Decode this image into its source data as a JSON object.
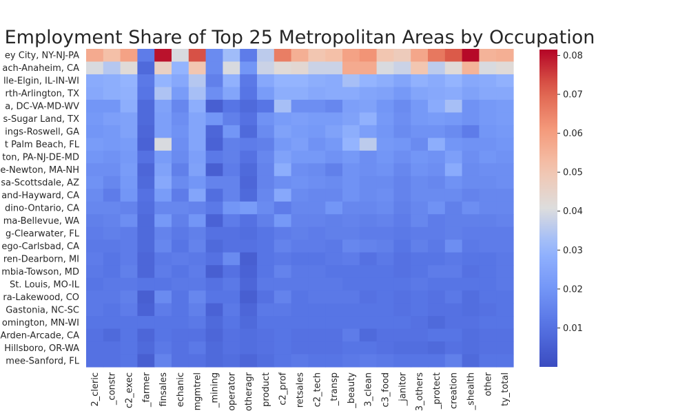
{
  "chart_data": {
    "type": "heatmap",
    "title": "Employment Share of Top 25 Metropolitan Areas by Occupation",
    "colormap": "coolwarm",
    "vmin": 0.0,
    "vmax": 0.0815,
    "colorbar_ticks": [
      0.01,
      0.02,
      0.03,
      0.04,
      0.05,
      0.06,
      0.07,
      0.08
    ],
    "colorbar_tick_labels": [
      "0.01",
      "0.02",
      "0.03",
      "0.04",
      "0.05",
      "0.06",
      "0.07",
      "0.08"
    ],
    "rows": [
      "ey City, NY-NJ-PA",
      "ach-Anaheim, CA",
      "lle-Elgin, IL-IN-WI",
      "rth-Arlington, TX",
      "a, DC-VA-MD-WV",
      "s-Sugar Land, TX",
      "ings-Roswell, GA",
      "t Palm Beach, FL",
      "ton, PA-NJ-DE-MD",
      "e-Newton, MA-NH",
      "sa-Scottsdale, AZ",
      "and-Hayward, CA",
      "dino-Ontario, CA",
      "ma-Bellevue, WA",
      "g-Clearwater, FL",
      "ego-Carlsbad, CA",
      "ren-Dearborn, MI",
      "mbia-Towson, MD",
      "St. Louis, MO-IL",
      "ra-Lakewood, CO",
      "Gastonia, NC-SC",
      "omington, MN-WI",
      "Arden-Arcade, CA",
      "Hillsboro, OR-WA",
      "mee-Sanford, FL"
    ],
    "columns": [
      "2_cleric",
      "_constr",
      "c2_exec",
      "_farmer",
      "finsales",
      "echanic",
      "mgmtrel",
      "_mining",
      "operator",
      "otheragr",
      "product",
      "c2_prof",
      "retsales",
      "c2_tech",
      "_transp",
      "_beauty",
      "3_clean",
      "c3_food",
      "_janitor",
      "3_others",
      "_protect",
      "creation",
      "_shealth",
      "other",
      "ty_total"
    ],
    "values": [
      [
        0.057,
        0.052,
        0.059,
        0.013,
        0.08,
        0.04,
        0.073,
        0.017,
        0.032,
        0.013,
        0.036,
        0.066,
        0.056,
        0.05,
        0.052,
        0.059,
        0.062,
        0.05,
        0.048,
        0.058,
        0.067,
        0.072,
        0.081,
        0.055,
        0.056
      ],
      [
        0.04,
        0.035,
        0.042,
        0.008,
        0.046,
        0.03,
        0.05,
        0.017,
        0.04,
        0.02,
        0.038,
        0.042,
        0.043,
        0.038,
        0.038,
        0.057,
        0.057,
        0.04,
        0.038,
        0.05,
        0.036,
        0.042,
        0.055,
        0.04,
        0.042
      ],
      [
        0.027,
        0.028,
        0.03,
        0.012,
        0.03,
        0.026,
        0.035,
        0.014,
        0.029,
        0.012,
        0.026,
        0.03,
        0.03,
        0.028,
        0.027,
        0.033,
        0.03,
        0.028,
        0.025,
        0.029,
        0.027,
        0.03,
        0.026,
        0.027,
        0.029
      ],
      [
        0.026,
        0.028,
        0.029,
        0.011,
        0.034,
        0.022,
        0.033,
        0.018,
        0.025,
        0.011,
        0.022,
        0.028,
        0.028,
        0.026,
        0.027,
        0.027,
        0.025,
        0.024,
        0.021,
        0.025,
        0.026,
        0.027,
        0.024,
        0.026,
        0.026
      ],
      [
        0.02,
        0.02,
        0.028,
        0.008,
        0.024,
        0.016,
        0.028,
        0.005,
        0.011,
        0.008,
        0.011,
        0.033,
        0.018,
        0.018,
        0.016,
        0.023,
        0.024,
        0.02,
        0.017,
        0.021,
        0.027,
        0.033,
        0.019,
        0.021,
        0.022
      ],
      [
        0.021,
        0.023,
        0.024,
        0.008,
        0.023,
        0.018,
        0.025,
        0.02,
        0.014,
        0.01,
        0.019,
        0.022,
        0.023,
        0.022,
        0.022,
        0.024,
        0.029,
        0.021,
        0.018,
        0.021,
        0.022,
        0.021,
        0.019,
        0.021,
        0.022
      ],
      [
        0.02,
        0.021,
        0.024,
        0.007,
        0.023,
        0.019,
        0.025,
        0.007,
        0.02,
        0.008,
        0.017,
        0.024,
        0.022,
        0.021,
        0.024,
        0.028,
        0.023,
        0.02,
        0.017,
        0.019,
        0.019,
        0.017,
        0.013,
        0.02,
        0.021
      ],
      [
        0.022,
        0.021,
        0.022,
        0.006,
        0.04,
        0.018,
        0.025,
        0.006,
        0.014,
        0.013,
        0.014,
        0.021,
        0.023,
        0.019,
        0.021,
        0.03,
        0.036,
        0.021,
        0.02,
        0.017,
        0.028,
        0.02,
        0.019,
        0.019,
        0.02
      ],
      [
        0.02,
        0.019,
        0.021,
        0.01,
        0.022,
        0.017,
        0.023,
        0.012,
        0.014,
        0.01,
        0.016,
        0.024,
        0.021,
        0.021,
        0.019,
        0.021,
        0.018,
        0.02,
        0.018,
        0.02,
        0.019,
        0.023,
        0.018,
        0.02,
        0.019
      ],
      [
        0.018,
        0.018,
        0.022,
        0.007,
        0.024,
        0.014,
        0.024,
        0.005,
        0.013,
        0.008,
        0.015,
        0.028,
        0.018,
        0.017,
        0.014,
        0.019,
        0.018,
        0.019,
        0.016,
        0.019,
        0.018,
        0.027,
        0.017,
        0.018,
        0.018
      ],
      [
        0.019,
        0.016,
        0.021,
        0.008,
        0.026,
        0.017,
        0.02,
        0.015,
        0.015,
        0.007,
        0.015,
        0.018,
        0.019,
        0.018,
        0.017,
        0.019,
        0.017,
        0.017,
        0.015,
        0.017,
        0.016,
        0.019,
        0.017,
        0.017,
        0.018
      ],
      [
        0.017,
        0.013,
        0.02,
        0.01,
        0.022,
        0.013,
        0.025,
        0.009,
        0.015,
        0.008,
        0.016,
        0.026,
        0.017,
        0.016,
        0.016,
        0.019,
        0.017,
        0.018,
        0.015,
        0.017,
        0.017,
        0.017,
        0.015,
        0.016,
        0.016
      ],
      [
        0.016,
        0.016,
        0.015,
        0.009,
        0.016,
        0.016,
        0.015,
        0.012,
        0.02,
        0.022,
        0.017,
        0.013,
        0.016,
        0.016,
        0.02,
        0.016,
        0.016,
        0.017,
        0.014,
        0.016,
        0.019,
        0.014,
        0.018,
        0.016,
        0.016
      ],
      [
        0.014,
        0.015,
        0.018,
        0.008,
        0.021,
        0.014,
        0.02,
        0.006,
        0.013,
        0.01,
        0.014,
        0.021,
        0.015,
        0.015,
        0.014,
        0.015,
        0.014,
        0.015,
        0.013,
        0.016,
        0.013,
        0.014,
        0.014,
        0.014,
        0.015
      ],
      [
        0.013,
        0.014,
        0.013,
        0.008,
        0.015,
        0.012,
        0.014,
        0.01,
        0.01,
        0.009,
        0.011,
        0.013,
        0.014,
        0.013,
        0.014,
        0.014,
        0.013,
        0.013,
        0.012,
        0.013,
        0.013,
        0.014,
        0.013,
        0.013,
        0.013
      ],
      [
        0.012,
        0.012,
        0.013,
        0.008,
        0.016,
        0.011,
        0.015,
        0.008,
        0.01,
        0.01,
        0.011,
        0.015,
        0.013,
        0.013,
        0.012,
        0.016,
        0.015,
        0.014,
        0.011,
        0.014,
        0.012,
        0.018,
        0.012,
        0.013,
        0.013
      ],
      [
        0.013,
        0.011,
        0.013,
        0.007,
        0.012,
        0.013,
        0.012,
        0.01,
        0.017,
        0.005,
        0.011,
        0.012,
        0.011,
        0.011,
        0.012,
        0.013,
        0.01,
        0.012,
        0.01,
        0.011,
        0.011,
        0.012,
        0.011,
        0.011,
        0.012
      ],
      [
        0.012,
        0.011,
        0.014,
        0.007,
        0.013,
        0.011,
        0.013,
        0.005,
        0.01,
        0.006,
        0.011,
        0.015,
        0.012,
        0.012,
        0.011,
        0.011,
        0.011,
        0.011,
        0.01,
        0.011,
        0.013,
        0.013,
        0.01,
        0.011,
        0.012
      ],
      [
        0.011,
        0.012,
        0.012,
        0.011,
        0.011,
        0.012,
        0.012,
        0.01,
        0.012,
        0.007,
        0.012,
        0.012,
        0.012,
        0.012,
        0.012,
        0.011,
        0.011,
        0.011,
        0.011,
        0.012,
        0.011,
        0.011,
        0.011,
        0.011,
        0.012
      ],
      [
        0.012,
        0.012,
        0.014,
        0.005,
        0.017,
        0.011,
        0.016,
        0.011,
        0.011,
        0.005,
        0.01,
        0.015,
        0.011,
        0.012,
        0.012,
        0.012,
        0.01,
        0.011,
        0.01,
        0.011,
        0.01,
        0.012,
        0.009,
        0.011,
        0.011
      ],
      [
        0.012,
        0.011,
        0.013,
        0.006,
        0.013,
        0.011,
        0.014,
        0.006,
        0.012,
        0.007,
        0.012,
        0.012,
        0.011,
        0.011,
        0.011,
        0.011,
        0.011,
        0.011,
        0.01,
        0.011,
        0.01,
        0.01,
        0.009,
        0.01,
        0.011
      ],
      [
        0.011,
        0.011,
        0.011,
        0.011,
        0.011,
        0.011,
        0.012,
        0.008,
        0.011,
        0.008,
        0.011,
        0.011,
        0.011,
        0.011,
        0.011,
        0.011,
        0.011,
        0.011,
        0.011,
        0.01,
        0.008,
        0.01,
        0.01,
        0.011,
        0.011
      ],
      [
        0.01,
        0.008,
        0.011,
        0.007,
        0.011,
        0.01,
        0.01,
        0.007,
        0.01,
        0.009,
        0.01,
        0.011,
        0.01,
        0.01,
        0.01,
        0.013,
        0.008,
        0.01,
        0.01,
        0.01,
        0.011,
        0.011,
        0.009,
        0.01,
        0.01
      ],
      [
        0.01,
        0.01,
        0.011,
        0.008,
        0.012,
        0.01,
        0.012,
        0.008,
        0.01,
        0.009,
        0.01,
        0.011,
        0.01,
        0.01,
        0.01,
        0.011,
        0.011,
        0.01,
        0.009,
        0.009,
        0.008,
        0.01,
        0.009,
        0.01,
        0.01
      ],
      [
        0.01,
        0.01,
        0.011,
        0.005,
        0.015,
        0.01,
        0.01,
        0.008,
        0.009,
        0.007,
        0.009,
        0.011,
        0.012,
        0.011,
        0.011,
        0.012,
        0.013,
        0.012,
        0.011,
        0.011,
        0.011,
        0.014,
        0.008,
        0.011,
        0.011
      ]
    ]
  }
}
